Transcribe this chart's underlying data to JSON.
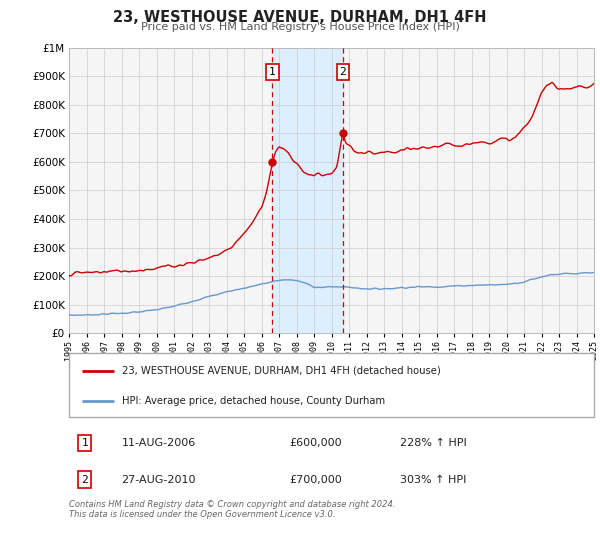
{
  "title": "23, WESTHOUSE AVENUE, DURHAM, DH1 4FH",
  "subtitle": "Price paid vs. HM Land Registry's House Price Index (HPI)",
  "legend_label_red": "23, WESTHOUSE AVENUE, DURHAM, DH1 4FH (detached house)",
  "legend_label_blue": "HPI: Average price, detached house, County Durham",
  "sale1_date": "11-AUG-2006",
  "sale1_price": "£600,000",
  "sale1_hpi": "228% ↑ HPI",
  "sale1_year": 2006.62,
  "sale1_value": 600000,
  "sale2_date": "27-AUG-2010",
  "sale2_price": "£700,000",
  "sale2_hpi": "303% ↑ HPI",
  "sale2_year": 2010.65,
  "sale2_value": 700000,
  "shade_start": 2006.62,
  "shade_end": 2010.65,
  "color_red": "#cc0000",
  "color_blue": "#6699cc",
  "color_shade": "#ddeeff",
  "ylim": [
    0,
    1000000
  ],
  "xlim_start": 1995,
  "xlim_end": 2025,
  "footer": "Contains HM Land Registry data © Crown copyright and database right 2024.\nThis data is licensed under the Open Government Licence v3.0.",
  "background_color": "#f5f5f5",
  "grid_color": "#cccccc",
  "hpi_x": [
    1995,
    1996,
    1997,
    1998,
    1999,
    2000,
    2001,
    2002,
    2003,
    2004,
    2005,
    2006,
    2006.5,
    2007,
    2007.5,
    2008,
    2008.5,
    2009,
    2009.5,
    2010,
    2010.5,
    2011,
    2011.5,
    2012,
    2012.5,
    2013,
    2013.5,
    2014,
    2015,
    2016,
    2017,
    2018,
    2019,
    2020,
    2021,
    2022,
    2022.5,
    2023,
    2023.5,
    2024,
    2024.5,
    2025
  ],
  "hpi_y": [
    63000,
    64000,
    67000,
    70000,
    74000,
    82000,
    94000,
    112000,
    128000,
    145000,
    158000,
    172000,
    178000,
    185000,
    188000,
    184000,
    175000,
    163000,
    160000,
    162000,
    163000,
    161000,
    158000,
    156000,
    155000,
    156000,
    157000,
    160000,
    162000,
    163000,
    165000,
    168000,
    169000,
    171000,
    180000,
    198000,
    205000,
    207000,
    208000,
    207000,
    210000,
    211000
  ],
  "prop_x": [
    1995,
    1996,
    1997,
    1998,
    1999,
    2000,
    2001,
    2002,
    2003,
    2004,
    2004.5,
    2005,
    2005.5,
    2006,
    2006.3,
    2006.62,
    2006.8,
    2007.0,
    2007.2,
    2007.5,
    2008,
    2008.5,
    2009,
    2009.3,
    2009.5,
    2010,
    2010.3,
    2010.65,
    2010.8,
    2011,
    2011.3,
    2011.5,
    2012,
    2012.5,
    2013,
    2013.5,
    2014,
    2014.5,
    2015,
    2015.5,
    2016,
    2016.5,
    2017,
    2017.5,
    2018,
    2018.5,
    2019,
    2019.5,
    2020,
    2020.5,
    2021,
    2021.5,
    2022,
    2022.3,
    2022.6,
    2022.8,
    2023,
    2023.3,
    2023.6,
    2024,
    2024.3,
    2024.6,
    2025
  ],
  "prop_y": [
    208000,
    212000,
    215000,
    218000,
    221000,
    228000,
    236000,
    248000,
    262000,
    290000,
    315000,
    350000,
    390000,
    440000,
    500000,
    600000,
    635000,
    650000,
    645000,
    630000,
    590000,
    565000,
    550000,
    560000,
    555000,
    558000,
    580000,
    700000,
    670000,
    655000,
    640000,
    630000,
    630000,
    628000,
    630000,
    633000,
    638000,
    642000,
    647000,
    651000,
    654000,
    657000,
    660000,
    662000,
    665000,
    668000,
    672000,
    675000,
    678000,
    682000,
    720000,
    760000,
    840000,
    865000,
    878000,
    870000,
    860000,
    855000,
    862000,
    858000,
    865000,
    860000,
    870000
  ]
}
